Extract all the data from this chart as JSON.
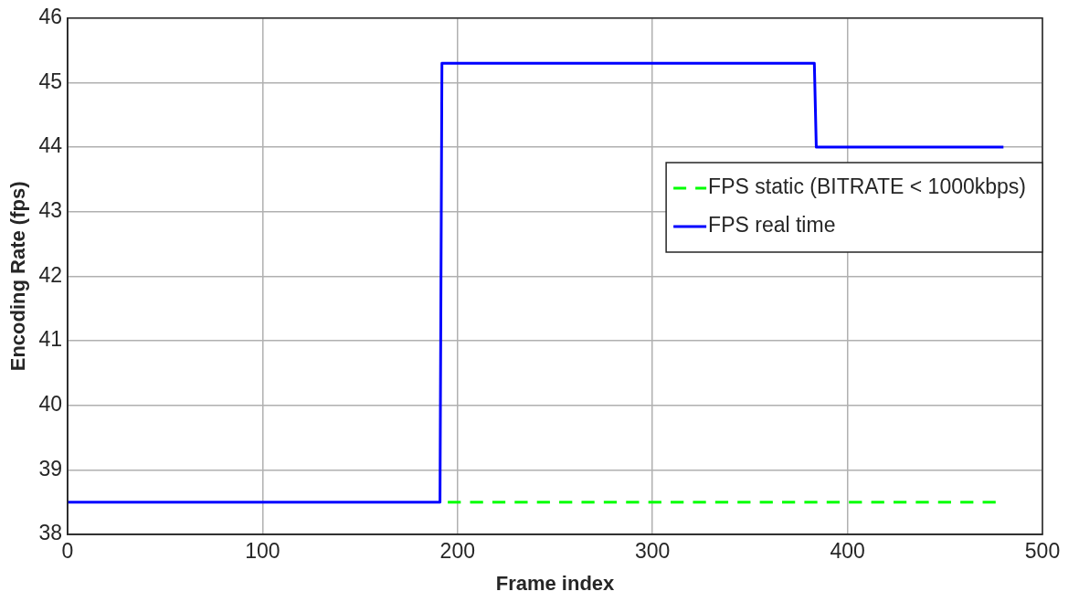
{
  "chart_data": {
    "type": "line",
    "xlabel": "Frame index",
    "ylabel": "Encoding Rate (fps)",
    "xlim": [
      0,
      500
    ],
    "xticks": [
      0,
      100,
      200,
      300,
      400,
      500
    ],
    "ylim": [
      38,
      46
    ],
    "yticks": [
      38,
      39,
      40,
      41,
      42,
      43,
      44,
      45,
      46
    ],
    "grid": true,
    "legend": "right",
    "marker": "none",
    "series": [
      {
        "name": "FPS static (BITRATE < 1000kbps)",
        "color": "#00ff00",
        "line_style": "dashed",
        "x": [
          195,
          476
        ],
        "values": [
          38.5,
          38.5
        ]
      },
      {
        "name": "FPS real time",
        "color": "#0000ff",
        "line_style": "solid",
        "x": [
          0,
          191,
          192,
          383,
          384,
          480
        ],
        "values": [
          38.5,
          38.5,
          45.3,
          45.3,
          44,
          44
        ]
      }
    ]
  }
}
